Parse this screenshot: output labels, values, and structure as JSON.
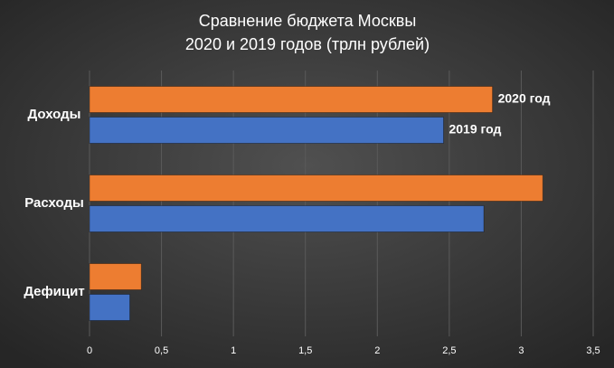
{
  "chart_data": {
    "type": "hbar",
    "title": [
      "Сравнение  бюджета  Москвы",
      "2020 и 2019 годов  (трлн  рублей)"
    ],
    "categories": [
      "Доходы",
      "Расходы",
      "Дефицит"
    ],
    "series": [
      {
        "name": "2020 год",
        "color": "#ed7d31",
        "values": [
          2.8,
          3.15,
          0.36
        ]
      },
      {
        "name": "2019 год",
        "color": "#4472c4",
        "values": [
          2.46,
          2.74,
          0.28
        ]
      }
    ],
    "xlim": [
      0,
      3.5
    ],
    "xticks": [
      0,
      {
        "value": 0.5,
        "label": "0,5"
      },
      1,
      {
        "value": 1.5,
        "label": "1,5"
      },
      2,
      {
        "value": 2.5,
        "label": "2,5"
      },
      3,
      {
        "value": 3.5,
        "label": "3,5"
      }
    ],
    "grid": true
  }
}
